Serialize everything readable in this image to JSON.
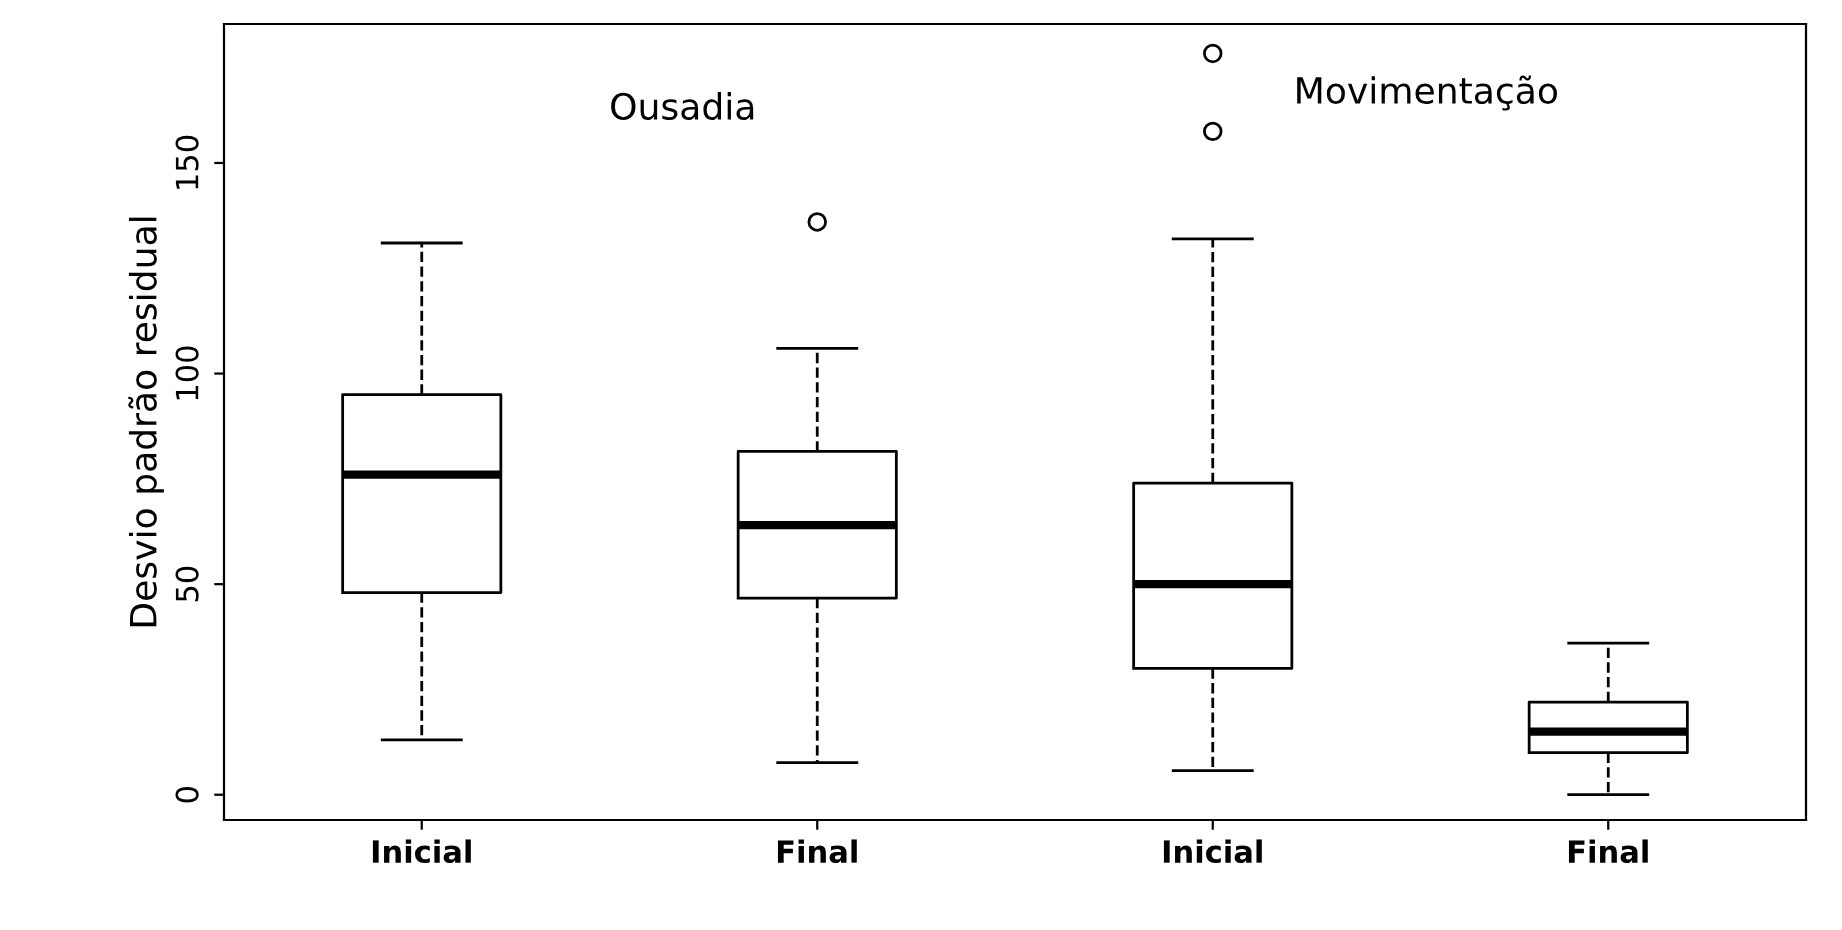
{
  "chart_data": {
    "type": "box",
    "ylabel": "Desvio padrão residual",
    "categories": [
      "Inicial",
      "Final",
      "Inicial",
      "Final"
    ],
    "boxes": [
      {
        "low": 13,
        "q1": 48,
        "median": 76,
        "q3": 95,
        "high": 131
      },
      {
        "low": 7.6,
        "q1": 46.7,
        "median": 64,
        "q3": 81.5,
        "high": 106,
        "outliers": [
          136
        ]
      },
      {
        "low": 5.7,
        "q1": 30,
        "median": 50,
        "q3": 74,
        "high": 132,
        "outliers": [
          176,
          157.5
        ]
      },
      {
        "low": 0,
        "q1": 10,
        "median": 15,
        "q3": 22,
        "high": 36
      }
    ],
    "annotations": [
      "Ousadia",
      "Movimentação"
    ],
    "ylim": [
      -6,
      183
    ],
    "yticks": [
      0,
      50,
      100,
      150
    ],
    "grid": false
  }
}
